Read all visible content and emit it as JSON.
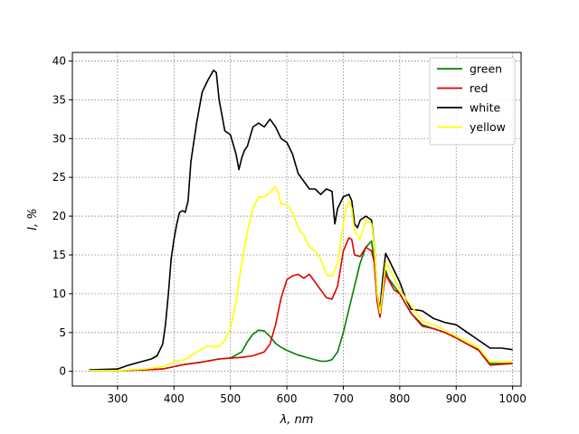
{
  "chart_data": {
    "type": "line",
    "xlabel": "λ, nm",
    "ylabel": "I, %",
    "xlim": [
      220,
      1015
    ],
    "ylim": [
      -1.9,
      41.1
    ],
    "xticks": [
      300,
      400,
      500,
      600,
      700,
      800,
      900,
      1000
    ],
    "yticks": [
      0,
      5,
      10,
      15,
      20,
      25,
      30,
      35,
      40
    ],
    "grid": true,
    "legend_position": "top-right",
    "series": [
      {
        "name": "green",
        "color": "#008000",
        "x": [
          250,
          300,
          350,
          380,
          400,
          420,
          450,
          480,
          500,
          520,
          530,
          540,
          550,
          560,
          570,
          580,
          590,
          600,
          620,
          640,
          660,
          670,
          680,
          690,
          700,
          710,
          720,
          730,
          740,
          750,
          755,
          760,
          765,
          770,
          775,
          780,
          790,
          800,
          820,
          840,
          860,
          880,
          900,
          920,
          940,
          960,
          980,
          1000
        ],
        "y": [
          0.1,
          0.1,
          0.2,
          0.3,
          0.6,
          0.9,
          1.2,
          1.6,
          1.7,
          2.5,
          3.8,
          4.8,
          5.3,
          5.2,
          4.5,
          3.6,
          3.1,
          2.7,
          2.1,
          1.7,
          1.3,
          1.3,
          1.5,
          2.5,
          5.0,
          8.0,
          11.0,
          14.0,
          16.0,
          16.8,
          14.0,
          9.0,
          7.0,
          10.0,
          13.0,
          12.0,
          11.0,
          10.0,
          7.5,
          6.0,
          5.5,
          5.0,
          4.3,
          3.5,
          2.8,
          1.0,
          1.0,
          1.0
        ]
      },
      {
        "name": "red",
        "color": "#e00000",
        "x": [
          250,
          300,
          350,
          380,
          400,
          420,
          450,
          480,
          500,
          520,
          540,
          560,
          570,
          580,
          590,
          600,
          610,
          620,
          630,
          640,
          650,
          660,
          670,
          680,
          690,
          700,
          710,
          715,
          720,
          730,
          740,
          750,
          755,
          760,
          765,
          770,
          775,
          780,
          790,
          800,
          820,
          840,
          860,
          880,
          900,
          920,
          940,
          960,
          980,
          1000
        ],
        "y": [
          0.1,
          0.1,
          0.2,
          0.3,
          0.6,
          0.9,
          1.2,
          1.6,
          1.7,
          1.8,
          2.0,
          2.5,
          3.5,
          6.0,
          9.5,
          11.8,
          12.3,
          12.5,
          12.0,
          12.5,
          11.5,
          10.5,
          9.5,
          9.3,
          11.0,
          15.5,
          17.2,
          17.0,
          15.0,
          14.8,
          16.0,
          15.5,
          14.0,
          9.0,
          7.0,
          10.0,
          12.5,
          11.8,
          10.5,
          10.0,
          7.5,
          5.8,
          5.5,
          5.0,
          4.3,
          3.5,
          2.7,
          0.8,
          0.9,
          1.0
        ]
      },
      {
        "name": "white",
        "color": "#000000",
        "x": [
          250,
          300,
          320,
          340,
          360,
          370,
          380,
          385,
          390,
          395,
          400,
          405,
          410,
          415,
          420,
          425,
          430,
          440,
          450,
          460,
          470,
          475,
          480,
          490,
          500,
          510,
          515,
          520,
          525,
          530,
          540,
          550,
          560,
          570,
          580,
          590,
          600,
          610,
          620,
          630,
          640,
          650,
          660,
          670,
          680,
          685,
          690,
          700,
          710,
          715,
          720,
          725,
          730,
          740,
          750,
          755,
          760,
          765,
          770,
          775,
          780,
          790,
          800,
          810,
          820,
          840,
          860,
          880,
          900,
          920,
          940,
          960,
          980,
          1000
        ],
        "y": [
          0.2,
          0.3,
          0.8,
          1.2,
          1.6,
          2.0,
          3.5,
          6.0,
          10.0,
          14.5,
          17.0,
          19.0,
          20.5,
          20.7,
          20.5,
          22.0,
          27.0,
          32.0,
          36.0,
          37.5,
          38.8,
          38.5,
          35.0,
          31.0,
          30.5,
          28.0,
          26.0,
          27.5,
          28.5,
          29.0,
          31.5,
          32.0,
          31.5,
          32.5,
          31.5,
          30.0,
          29.5,
          28.0,
          25.5,
          24.5,
          23.5,
          23.5,
          22.8,
          23.5,
          23.2,
          19.0,
          21.0,
          22.5,
          22.8,
          22.0,
          19.0,
          18.5,
          19.5,
          20.0,
          19.5,
          16.0,
          10.0,
          8.0,
          12.0,
          15.2,
          14.5,
          13.0,
          11.5,
          9.5,
          8.0,
          7.8,
          6.8,
          6.3,
          6.0,
          5.0,
          4.0,
          3.0,
          3.0,
          2.8
        ]
      },
      {
        "name": "yellow",
        "color": "#ffff00",
        "x": [
          250,
          300,
          350,
          380,
          400,
          420,
          440,
          460,
          470,
          480,
          490,
          500,
          510,
          520,
          530,
          540,
          550,
          560,
          570,
          575,
          580,
          585,
          590,
          600,
          610,
          620,
          630,
          640,
          650,
          660,
          670,
          680,
          690,
          700,
          705,
          710,
          715,
          720,
          730,
          740,
          750,
          755,
          760,
          765,
          770,
          775,
          780,
          790,
          800,
          820,
          840,
          860,
          880,
          900,
          920,
          940,
          960,
          980,
          1000
        ],
        "y": [
          0.1,
          0.1,
          0.3,
          0.6,
          1.2,
          1.5,
          2.5,
          3.3,
          3.2,
          3.2,
          4.0,
          5.5,
          9.0,
          14.0,
          18.0,
          21.0,
          22.5,
          22.5,
          23.0,
          23.5,
          23.8,
          23.0,
          21.5,
          21.5,
          20.5,
          18.5,
          17.5,
          16.0,
          15.5,
          14.5,
          12.5,
          12.2,
          14.0,
          19.0,
          21.0,
          22.0,
          21.0,
          18.0,
          17.0,
          19.5,
          19.0,
          16.0,
          10.0,
          7.5,
          10.5,
          14.0,
          13.5,
          12.0,
          10.5,
          8.5,
          6.5,
          6.0,
          5.3,
          4.5,
          3.8,
          3.0,
          1.2,
          1.3,
          1.2
        ]
      }
    ]
  }
}
